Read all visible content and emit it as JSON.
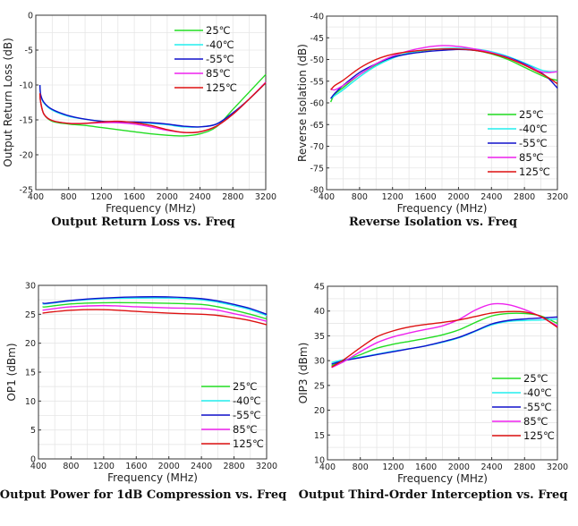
{
  "colors": {
    "25C": "#22dd22",
    "-40C": "#22eeee",
    "-55C": "#1010cc",
    "85C": "#ee22ee",
    "125C": "#dd1111"
  },
  "chart_data": [
    {
      "type": "line",
      "title": "Output Return Loss vs. Freq",
      "xlabel": "Frequency  (MHz)",
      "ylabel": "Output Return Loss (dB)",
      "xlim": [
        400,
        3200
      ],
      "ylim": [
        -25,
        0
      ],
      "xticks": [
        400,
        800,
        1200,
        1600,
        2000,
        2400,
        2800,
        3200
      ],
      "yticks": [
        0,
        -5,
        -10,
        -15,
        -20,
        -25
      ],
      "grid": true,
      "legend": "top-right",
      "x": [
        450,
        460,
        500,
        600,
        800,
        1000,
        1200,
        1400,
        1600,
        1800,
        2000,
        2200,
        2400,
        2600,
        2800,
        3000,
        3200
      ],
      "series": [
        {
          "name": "25℃",
          "key": "25C",
          "values": [
            -11.2,
            -12.5,
            -14.2,
            -15.2,
            -15.6,
            -15.8,
            -16.1,
            -16.4,
            -16.7,
            -17.0,
            -17.2,
            -17.3,
            -17.0,
            -16.0,
            -13.5,
            -11.0,
            -8.5
          ]
        },
        {
          "name": "-40℃",
          "key": "-40C",
          "values": [
            -10.0,
            -11.5,
            -12.6,
            -13.6,
            -14.5,
            -14.9,
            -15.2,
            -15.3,
            -15.4,
            -15.5,
            -15.7,
            -16.0,
            -16.0,
            -15.6,
            -14.0,
            -12.0,
            -9.7
          ]
        },
        {
          "name": "-55℃",
          "key": "-55C",
          "values": [
            -10.0,
            -11.4,
            -12.5,
            -13.5,
            -14.4,
            -14.9,
            -15.2,
            -15.3,
            -15.3,
            -15.4,
            -15.6,
            -15.9,
            -16.0,
            -15.6,
            -14.0,
            -12.0,
            -9.7
          ]
        },
        {
          "name": "85℃",
          "key": "85C",
          "values": [
            -11.2,
            -12.5,
            -14.2,
            -15.1,
            -15.5,
            -15.5,
            -15.4,
            -15.4,
            -15.6,
            -16.0,
            -16.5,
            -16.8,
            -16.7,
            -15.9,
            -14.2,
            -12.0,
            -9.6
          ]
        },
        {
          "name": "125℃",
          "key": "125C",
          "values": [
            -11.2,
            -12.5,
            -14.2,
            -15.1,
            -15.5,
            -15.5,
            -15.3,
            -15.2,
            -15.4,
            -15.8,
            -16.4,
            -16.8,
            -16.7,
            -15.9,
            -14.2,
            -12.0,
            -9.7
          ]
        }
      ]
    },
    {
      "type": "line",
      "title": "Reverse Isolation vs. Freq",
      "xlabel": "Frequency  (MHz)",
      "ylabel": "Reverse Isolation (dB)",
      "xlim": [
        400,
        3200
      ],
      "ylim": [
        -80,
        -40
      ],
      "xticks": [
        400,
        800,
        1200,
        1600,
        2000,
        2400,
        2800,
        3200
      ],
      "yticks": [
        -40,
        -45,
        -50,
        -55,
        -60,
        -65,
        -70,
        -75,
        -80
      ],
      "grid": true,
      "legend": "bottom-right",
      "x": [
        450,
        500,
        600,
        800,
        1000,
        1200,
        1400,
        1600,
        1800,
        2000,
        2200,
        2400,
        2600,
        2800,
        3000,
        3100,
        3200
      ],
      "series": [
        {
          "name": "25℃",
          "key": "25C",
          "values": [
            -59.8,
            -58.0,
            -56.5,
            -53.5,
            -51.2,
            -49.5,
            -48.5,
            -47.9,
            -47.6,
            -47.6,
            -47.9,
            -48.7,
            -50.0,
            -51.8,
            -53.6,
            -54.4,
            -54.8
          ]
        },
        {
          "name": "-40℃",
          "key": "-40C",
          "values": [
            -59.0,
            -58.3,
            -57.0,
            -54.0,
            -51.5,
            -49.7,
            -48.5,
            -47.8,
            -47.5,
            -47.4,
            -47.6,
            -48.2,
            -49.3,
            -50.8,
            -52.4,
            -52.8,
            -52.8
          ]
        },
        {
          "name": "-55℃",
          "key": "-55C",
          "values": [
            -59.0,
            -57.8,
            -56.0,
            -53.0,
            -51.0,
            -49.5,
            -48.7,
            -48.2,
            -47.9,
            -47.7,
            -47.9,
            -48.5,
            -49.5,
            -51.0,
            -53.0,
            -54.5,
            -56.6
          ]
        },
        {
          "name": "85℃",
          "key": "85C",
          "values": [
            -56.8,
            -57.0,
            -56.0,
            -53.5,
            -51.0,
            -49.2,
            -48.0,
            -47.2,
            -46.8,
            -47.0,
            -47.6,
            -48.4,
            -49.6,
            -51.2,
            -52.8,
            -53.0,
            -52.8
          ]
        },
        {
          "name": "125℃",
          "key": "125C",
          "values": [
            -57.0,
            -56.0,
            -54.8,
            -52.0,
            -50.0,
            -48.8,
            -48.2,
            -47.8,
            -47.6,
            -47.6,
            -47.9,
            -48.6,
            -49.7,
            -51.3,
            -53.2,
            -54.3,
            -55.6
          ]
        }
      ]
    },
    {
      "type": "line",
      "title": "Output Power for 1dB Compression vs. Freq",
      "xlabel": "Frequency  (MHz)",
      "ylabel": "OP1 (dBm)",
      "xlim": [
        400,
        3200
      ],
      "ylim": [
        0,
        30
      ],
      "xticks": [
        400,
        800,
        1200,
        1600,
        2000,
        2400,
        2800,
        3200
      ],
      "yticks": [
        0,
        5,
        10,
        15,
        20,
        25,
        30
      ],
      "grid": true,
      "legend": "bottom-right",
      "x": [
        450,
        500,
        800,
        1200,
        1600,
        2000,
        2400,
        2600,
        2800,
        3000,
        3200
      ],
      "series": [
        {
          "name": "25℃",
          "key": "25C",
          "values": [
            26.3,
            26.3,
            26.8,
            27.0,
            27.0,
            26.9,
            26.7,
            26.3,
            25.7,
            25.0,
            24.2
          ]
        },
        {
          "name": "-40℃",
          "key": "-40C",
          "values": [
            26.8,
            26.8,
            27.3,
            27.7,
            27.8,
            27.8,
            27.5,
            27.1,
            26.5,
            25.8,
            24.8
          ]
        },
        {
          "name": "-55℃",
          "key": "-55C",
          "values": [
            27.0,
            26.9,
            27.4,
            27.8,
            28.0,
            28.0,
            27.7,
            27.3,
            26.7,
            26.0,
            25.0
          ]
        },
        {
          "name": "85℃",
          "key": "85C",
          "values": [
            25.7,
            25.8,
            26.3,
            26.5,
            26.3,
            26.1,
            26.0,
            25.7,
            25.1,
            24.5,
            23.8
          ]
        },
        {
          "name": "125℃",
          "key": "125C",
          "values": [
            25.2,
            25.3,
            25.7,
            25.8,
            25.5,
            25.2,
            25.0,
            24.8,
            24.4,
            23.9,
            23.2
          ]
        }
      ]
    },
    {
      "type": "line",
      "title": "Output Third-Order Interception vs. Freq",
      "xlabel": "Frequency  (MHz)",
      "ylabel": "OIP3 (dBm)",
      "xlim": [
        400,
        3200
      ],
      "ylim": [
        10,
        45
      ],
      "xticks": [
        400,
        800,
        1200,
        1600,
        2000,
        2400,
        2800,
        3200
      ],
      "yticks": [
        10,
        15,
        20,
        25,
        30,
        35,
        40,
        45
      ],
      "grid": true,
      "legend": "bottom-right",
      "x": [
        450,
        600,
        800,
        1000,
        1200,
        1400,
        1600,
        1800,
        2000,
        2200,
        2400,
        2600,
        2800,
        3000,
        3200
      ],
      "series": [
        {
          "name": "25℃",
          "key": "25C",
          "values": [
            29.0,
            30.0,
            31.2,
            32.5,
            33.3,
            33.9,
            34.5,
            35.2,
            36.2,
            37.7,
            39.0,
            39.5,
            39.5,
            39.0,
            37.5
          ]
        },
        {
          "name": "-40℃",
          "key": "-40C",
          "values": [
            29.6,
            30.2,
            30.7,
            31.3,
            31.9,
            32.4,
            33.0,
            33.7,
            34.6,
            35.9,
            37.2,
            37.9,
            38.1,
            38.2,
            38.4
          ]
        },
        {
          "name": "-55℃",
          "key": "-55C",
          "values": [
            29.3,
            30.0,
            30.6,
            31.2,
            31.8,
            32.4,
            33.0,
            33.8,
            34.7,
            36.0,
            37.4,
            38.1,
            38.4,
            38.6,
            38.8
          ]
        },
        {
          "name": "85℃",
          "key": "85C",
          "values": [
            28.6,
            29.8,
            31.8,
            33.6,
            34.8,
            35.6,
            36.3,
            37.0,
            38.3,
            40.2,
            41.4,
            41.3,
            40.3,
            38.8,
            37.0
          ]
        },
        {
          "name": "125℃",
          "key": "125C",
          "values": [
            28.7,
            30.2,
            32.6,
            34.8,
            36.0,
            36.8,
            37.3,
            37.7,
            38.2,
            38.9,
            39.6,
            39.9,
            39.8,
            38.9,
            36.7
          ]
        }
      ]
    }
  ]
}
